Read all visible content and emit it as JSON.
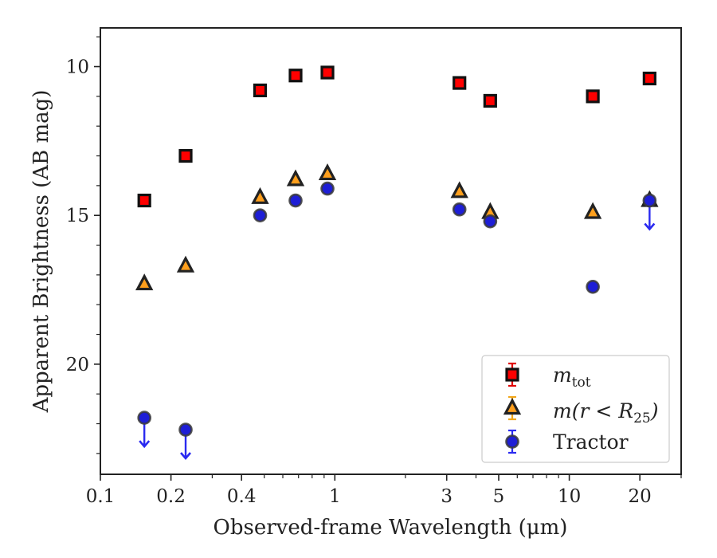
{
  "chart_data": {
    "type": "scatter",
    "title": "",
    "xlabel": "Observed-frame Wavelength (μm)",
    "ylabel": "Apparent Brightness (AB mag)",
    "xscale": "log",
    "xlim": [
      0.1,
      30
    ],
    "ylim": [
      23.7,
      8.7
    ],
    "y_inverted": true,
    "x_ticks": [
      {
        "value": 0.1,
        "label": "0.1"
      },
      {
        "value": 0.2,
        "label": "0.2"
      },
      {
        "value": 0.4,
        "label": "0.4"
      },
      {
        "value": 1,
        "label": "1"
      },
      {
        "value": 3,
        "label": "3"
      },
      {
        "value": 5,
        "label": "5"
      },
      {
        "value": 10,
        "label": "10"
      },
      {
        "value": 20,
        "label": "20"
      }
    ],
    "y_ticks": [
      {
        "value": 10,
        "label": "10"
      },
      {
        "value": 15,
        "label": "15"
      },
      {
        "value": 20,
        "label": "20"
      }
    ],
    "grid": false,
    "legend_position": "bottom-right",
    "series": [
      {
        "name": "m_tot",
        "legend_main": "m",
        "legend_sub": "tot",
        "marker": "square",
        "color": "#ff0000",
        "edge_color": "#111111",
        "x": [
          0.154,
          0.231,
          0.48,
          0.68,
          0.93,
          3.4,
          4.6,
          12.6,
          22.0
        ],
        "y": [
          14.5,
          13.0,
          10.8,
          10.3,
          10.2,
          10.55,
          11.15,
          11.0,
          10.4
        ]
      },
      {
        "name": "m(r < R25)",
        "legend_math": "m(r < R",
        "legend_sub": "25",
        "legend_close": ")",
        "marker": "triangle",
        "color": "#ff9f1c",
        "edge_color": "#222222",
        "x": [
          0.154,
          0.231,
          0.48,
          0.68,
          0.93,
          3.4,
          4.6,
          12.6,
          22.0
        ],
        "y": [
          17.3,
          16.7,
          14.4,
          13.8,
          13.6,
          14.2,
          14.9,
          14.9,
          14.5
        ]
      },
      {
        "name": "Tractor",
        "marker": "circle",
        "color": "#1e1ed6",
        "edge_color": "#3a3a3a",
        "x": [
          0.154,
          0.231,
          0.48,
          0.68,
          0.93,
          3.4,
          4.6,
          12.6,
          22.0
        ],
        "y": [
          21.8,
          22.2,
          15.0,
          14.5,
          14.1,
          14.8,
          15.2,
          17.4,
          14.5
        ],
        "upper_limits": [
          true,
          true,
          false,
          false,
          false,
          false,
          false,
          false,
          true
        ]
      }
    ]
  }
}
